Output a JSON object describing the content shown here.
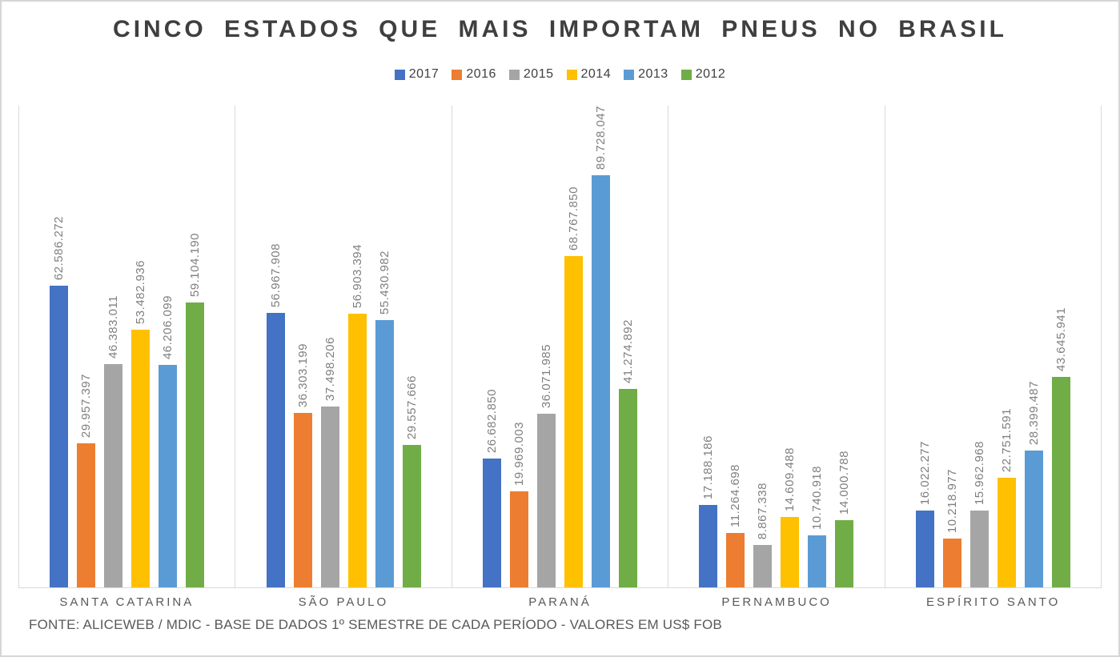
{
  "title": "CINCO ESTADOS QUE MAIS IMPORTAM PNEUS NO BRASIL",
  "footer": "FONTE: ALICEWEB / MDIC - BASE DE DADOS 1º SEMESTRE DE CADA PERÍODO - VALORES EM US$ FOB",
  "colors": {
    "grid": "#D9D9D9",
    "title_text": "#3F3F3F",
    "value_label_text": "#7F7F7F",
    "category_text": "#595959"
  },
  "chart_data": {
    "type": "bar",
    "title": "CINCO ESTADOS QUE MAIS IMPORTAM PNEUS NO BRASIL",
    "xlabel": "",
    "ylabel": "",
    "ylim": [
      0,
      100000000
    ],
    "grid": "vertical-category-separators",
    "legend_position": "top-center",
    "value_labels": "rotated-90-above-bars, pt-BR dot thousands separator",
    "categories": [
      "SANTA CATARINA",
      "SÃO PAULO",
      "PARANÁ",
      "PERNAMBUCO",
      "ESPÍRITO SANTO"
    ],
    "series": [
      {
        "name": "2017",
        "color": "#4472C4",
        "values": [
          62586272,
          56967908,
          26682850,
          17188186,
          16022277
        ]
      },
      {
        "name": "2016",
        "color": "#ED7D31",
        "values": [
          29957397,
          36303199,
          19969003,
          11264698,
          10218977
        ]
      },
      {
        "name": "2015",
        "color": "#A5A5A5",
        "values": [
          46383011,
          37498206,
          36071985,
          8867338,
          15962968
        ]
      },
      {
        "name": "2014",
        "color": "#FFC000",
        "values": [
          53482936,
          56903394,
          68767850,
          14609488,
          22751591
        ]
      },
      {
        "name": "2013",
        "color": "#5B9BD5",
        "values": [
          46206099,
          55430982,
          89728047,
          10740918,
          28399487
        ]
      },
      {
        "name": "2012",
        "color": "#70AD47",
        "values": [
          59104190,
          29557666,
          41274892,
          14000788,
          43645941
        ]
      }
    ]
  }
}
